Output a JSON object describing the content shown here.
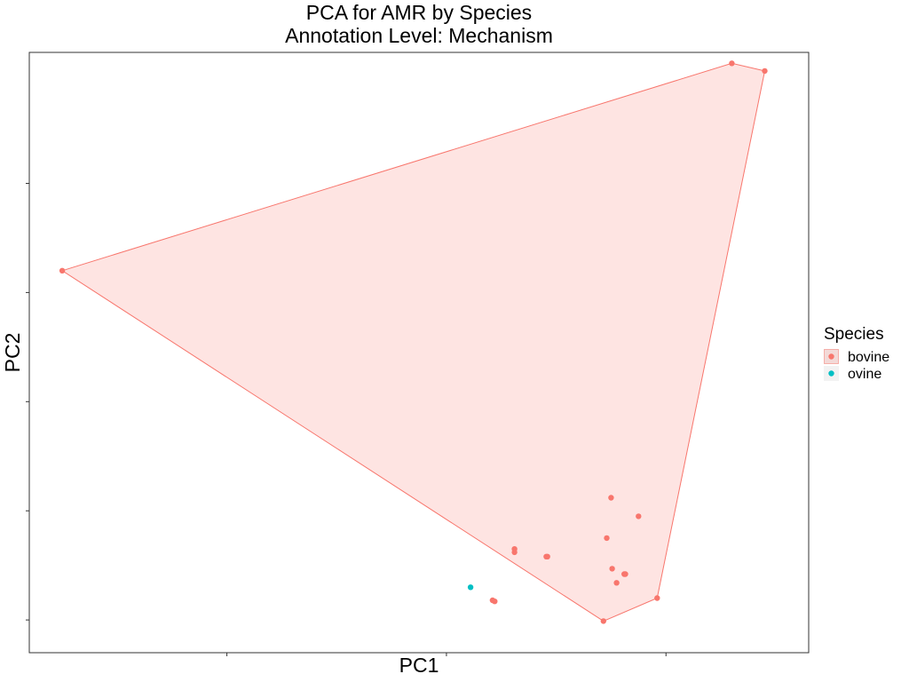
{
  "chart_data": {
    "type": "scatter",
    "title": "PCA for AMR by Species",
    "subtitle": "Annotation Level: Mechanism",
    "xlabel": "PC1",
    "ylabel": "PC2",
    "xlim": [
      -4.8,
      2.3
    ],
    "ylim": [
      -1.3,
      4.2
    ],
    "grid": false,
    "legend": {
      "title": "Species",
      "placement": "right"
    },
    "series": [
      {
        "name": "bovine",
        "color": "#F8766D",
        "points": [
          {
            "x": -4.5,
            "y": 2.2
          },
          {
            "x": 1.6,
            "y": 4.1
          },
          {
            "x": 1.9,
            "y": 4.03
          },
          {
            "x": 0.5,
            "y": 0.12
          },
          {
            "x": 0.75,
            "y": -0.05
          },
          {
            "x": 0.55,
            "y": -0.66
          },
          {
            "x": 0.43,
            "y": -1.01
          },
          {
            "x": 0.92,
            "y": -0.8
          },
          {
            "x": -0.38,
            "y": -0.35
          },
          {
            "x": -0.38,
            "y": -0.38
          },
          {
            "x": -0.08,
            "y": -0.42
          },
          {
            "x": -0.09,
            "y": -0.42
          },
          {
            "x": 0.51,
            "y": -0.53
          },
          {
            "x": 0.62,
            "y": -0.58
          },
          {
            "x": 0.63,
            "y": -0.58
          },
          {
            "x": -0.58,
            "y": -0.82
          },
          {
            "x": -0.56,
            "y": -0.83
          },
          {
            "x": 0.46,
            "y": -0.25
          }
        ]
      },
      {
        "name": "ovine",
        "color": "#00BFC4",
        "points": [
          {
            "x": -0.78,
            "y": -0.7
          }
        ]
      }
    ],
    "hull": {
      "series": "bovine",
      "fill": "#F8766D",
      "fill_opacity": 0.2,
      "points": [
        {
          "x": -4.5,
          "y": 2.2
        },
        {
          "x": 1.6,
          "y": 4.1
        },
        {
          "x": 1.9,
          "y": 4.03
        },
        {
          "x": 0.92,
          "y": -0.8
        },
        {
          "x": 0.43,
          "y": -1.01
        }
      ]
    }
  }
}
